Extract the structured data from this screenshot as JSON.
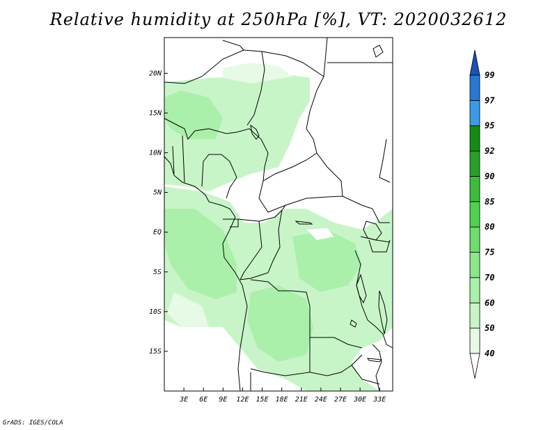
{
  "title": "Relative humidity at 250hPa [%], VT: 2020032612",
  "credit": "GrADS: IGES/COLA",
  "map": {
    "lat_range": [
      -20,
      24.5
    ],
    "lon_range": [
      0,
      35
    ],
    "lat_ticks": [
      "20N",
      "15N",
      "10N",
      "5N",
      "EQ",
      "5S",
      "10S",
      "15S"
    ],
    "lat_values": [
      20,
      15,
      10,
      5,
      0,
      -5,
      -10,
      -15
    ],
    "lon_ticks": [
      "3E",
      "6E",
      "9E",
      "12E",
      "15E",
      "18E",
      "21E",
      "24E",
      "27E",
      "30E",
      "33E"
    ],
    "lon_values": [
      3,
      6,
      9,
      12,
      15,
      18,
      21,
      24,
      27,
      30,
      33
    ]
  },
  "colorbar": {
    "levels": [
      "40",
      "50",
      "60",
      "70",
      "75",
      "80",
      "85",
      "90",
      "92",
      "95",
      "97",
      "99"
    ],
    "colors": [
      "#e6fae6",
      "#c8f5c8",
      "#aaf0aa",
      "#8ce68c",
      "#6edc6e",
      "#50d250",
      "#3cbe3c",
      "#28a028",
      "#148c14",
      "#3c9be6",
      "#2878d2",
      "#1e50b4"
    ],
    "below_color": "#ffffff"
  }
}
